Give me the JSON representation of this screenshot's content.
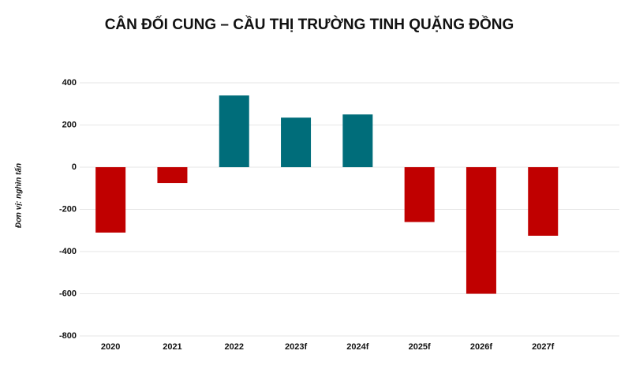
{
  "chart_data": {
    "type": "bar",
    "title": "CÂN ĐỐI CUNG – CẦU THỊ TRƯỜNG TINH QUẶNG ĐỒNG",
    "y_label": "Đơn vị: nghìn tấn",
    "categories": [
      "2020",
      "2021",
      "2022",
      "2023f",
      "2024f",
      "2025f",
      "2026f",
      "2027f"
    ],
    "values": [
      -310,
      -75,
      340,
      235,
      250,
      -260,
      -600,
      -325
    ],
    "positive_color": "#006d7a",
    "negative_color": "#c00000",
    "ylim": [
      -800,
      400
    ],
    "yticks": [
      -800,
      -600,
      -400,
      -200,
      0,
      200,
      400
    ],
    "grid": true
  }
}
